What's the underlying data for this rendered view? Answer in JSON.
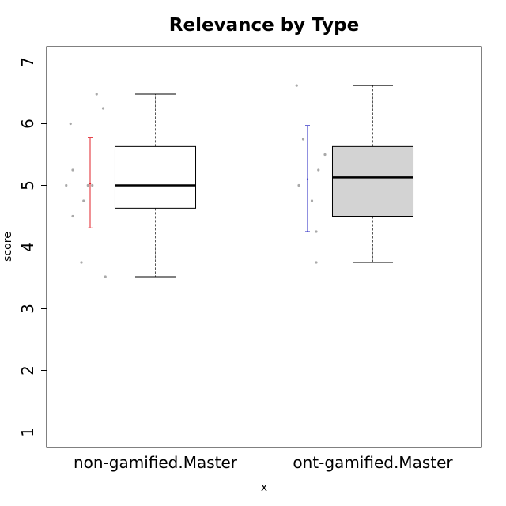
{
  "chart_data": {
    "type": "boxplot",
    "title": "Relevance by Type",
    "xlabel": "x",
    "ylabel": "score",
    "ylim": [
      0.75,
      7.25
    ],
    "y_ticks": [
      1,
      2,
      3,
      4,
      5,
      6,
      7
    ],
    "grid": false,
    "categories": [
      "non-gamified.Master",
      "ont-gamified.Master"
    ],
    "series": [
      {
        "box": {
          "min": 3.52,
          "q1": 4.63,
          "median": 5.0,
          "q3": 5.63,
          "max": 6.48
        },
        "box_fill": "#ffffff",
        "interval": {
          "low": 4.31,
          "mean": 5.03,
          "high": 5.78
        },
        "interval_color": "#e0202a",
        "points": [
          {
            "dx": -0.27,
            "y": 6.48
          },
          {
            "dx": -0.24,
            "y": 6.25
          },
          {
            "dx": -0.39,
            "y": 6.0
          },
          {
            "dx": -0.38,
            "y": 5.25
          },
          {
            "dx": -0.41,
            "y": 5.0
          },
          {
            "dx": -0.31,
            "y": 5.0
          },
          {
            "dx": -0.29,
            "y": 5.0
          },
          {
            "dx": -0.33,
            "y": 4.75
          },
          {
            "dx": -0.38,
            "y": 4.5
          },
          {
            "dx": -0.34,
            "y": 3.75
          },
          {
            "dx": -0.23,
            "y": 3.52
          }
        ]
      },
      {
        "box": {
          "min": 3.75,
          "q1": 4.5,
          "median": 5.13,
          "q3": 5.63,
          "max": 6.62
        },
        "box_fill": "#d3d3d3",
        "interval": {
          "low": 4.25,
          "mean": 5.1,
          "high": 5.97
        },
        "interval_color": "#2020c0",
        "points": [
          {
            "dx": -0.35,
            "y": 6.62
          },
          {
            "dx": -0.32,
            "y": 5.75
          },
          {
            "dx": -0.22,
            "y": 5.5
          },
          {
            "dx": -0.25,
            "y": 5.25
          },
          {
            "dx": -0.34,
            "y": 5.0
          },
          {
            "dx": -0.28,
            "y": 4.75
          },
          {
            "dx": -0.26,
            "y": 4.25
          },
          {
            "dx": -0.26,
            "y": 3.75
          }
        ]
      }
    ]
  },
  "colors": {
    "point": "#a9a9a9",
    "box_stroke": "#000000",
    "whisker": "#555555"
  }
}
